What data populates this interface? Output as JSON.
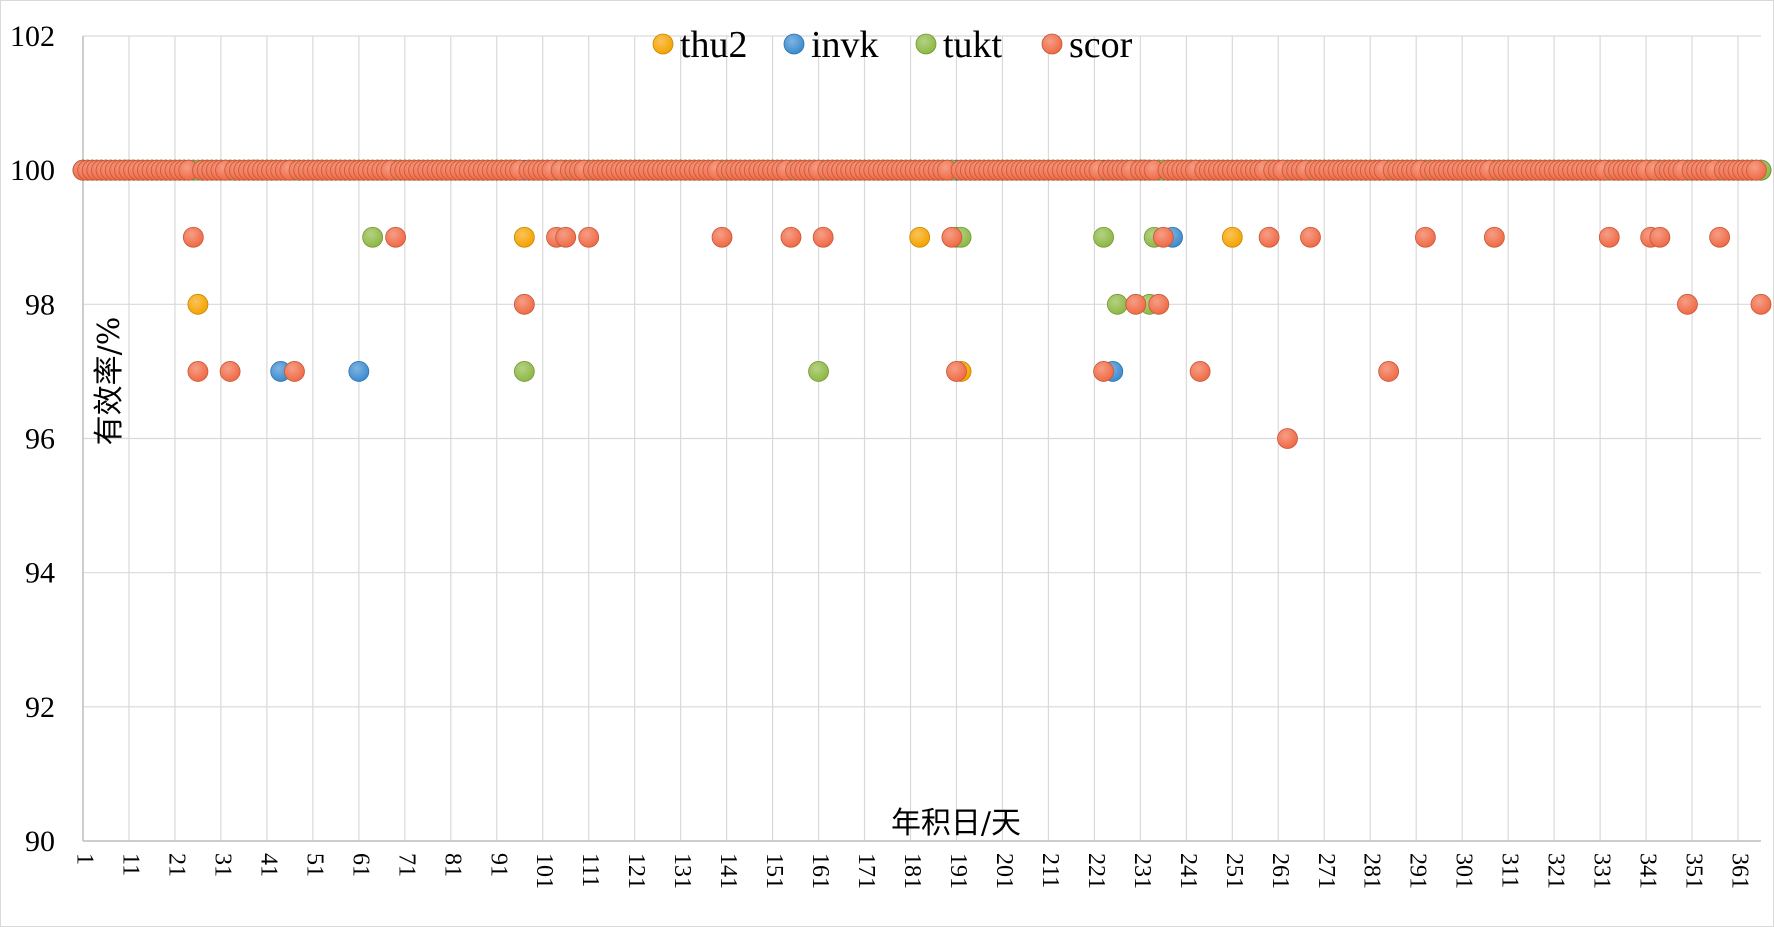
{
  "chart_data": {
    "type": "scatter",
    "title": "",
    "xlabel": "年积日/天",
    "ylabel": "有效率/%",
    "xlim": [
      1,
      366
    ],
    "ylim": [
      90,
      102
    ],
    "y_ticks": [
      90,
      92,
      94,
      96,
      98,
      100,
      102
    ],
    "x_tick_labels": [
      1,
      11,
      21,
      31,
      41,
      51,
      61,
      71,
      81,
      91,
      101,
      111,
      121,
      131,
      141,
      151,
      161,
      171,
      181,
      191,
      201,
      211,
      221,
      231,
      241,
      251,
      261,
      271,
      281,
      291,
      301,
      311,
      321,
      331,
      341,
      351,
      361
    ],
    "grid": true,
    "legend_position": "top-center",
    "baseline_value": 100,
    "series": [
      {
        "name": "thu2",
        "color": "#f5a300",
        "exceptions": [
          {
            "x": 26,
            "y": 98
          },
          {
            "x": 97,
            "y": 99
          },
          {
            "x": 183,
            "y": 99
          },
          {
            "x": 192,
            "y": 97
          },
          {
            "x": 251,
            "y": 99
          }
        ]
      },
      {
        "name": "invk",
        "color": "#3b8bd0",
        "exceptions": [
          {
            "x": 44,
            "y": 97
          },
          {
            "x": 61,
            "y": 97
          },
          {
            "x": 225,
            "y": 97
          },
          {
            "x": 238,
            "y": 99
          }
        ]
      },
      {
        "name": "tukt",
        "color": "#8db843",
        "exceptions": [
          {
            "x": 64,
            "y": 99
          },
          {
            "x": 97,
            "y": 97
          },
          {
            "x": 161,
            "y": 97
          },
          {
            "x": 191,
            "y": 99
          },
          {
            "x": 192,
            "y": 99
          },
          {
            "x": 223,
            "y": 99
          },
          {
            "x": 226,
            "y": 98
          },
          {
            "x": 233,
            "y": 98
          },
          {
            "x": 234,
            "y": 99
          }
        ]
      },
      {
        "name": "scor",
        "color": "#f06a45",
        "exceptions": [
          {
            "x": 25,
            "y": 99
          },
          {
            "x": 26,
            "y": 97
          },
          {
            "x": 33,
            "y": 97
          },
          {
            "x": 47,
            "y": 97
          },
          {
            "x": 69,
            "y": 99
          },
          {
            "x": 97,
            "y": 98
          },
          {
            "x": 104,
            "y": 99
          },
          {
            "x": 106,
            "y": 99
          },
          {
            "x": 111,
            "y": 99
          },
          {
            "x": 140,
            "y": 99
          },
          {
            "x": 155,
            "y": 99
          },
          {
            "x": 162,
            "y": 99
          },
          {
            "x": 190,
            "y": 99
          },
          {
            "x": 191,
            "y": 97
          },
          {
            "x": 223,
            "y": 97
          },
          {
            "x": 230,
            "y": 98
          },
          {
            "x": 235,
            "y": 98
          },
          {
            "x": 236,
            "y": 99
          },
          {
            "x": 244,
            "y": 97
          },
          {
            "x": 259,
            "y": 99
          },
          {
            "x": 263,
            "y": 96
          },
          {
            "x": 268,
            "y": 99
          },
          {
            "x": 285,
            "y": 97
          },
          {
            "x": 293,
            "y": 99
          },
          {
            "x": 308,
            "y": 99
          },
          {
            "x": 333,
            "y": 99
          },
          {
            "x": 342,
            "y": 99
          },
          {
            "x": 344,
            "y": 99
          },
          {
            "x": 350,
            "y": 98
          },
          {
            "x": 357,
            "y": 99
          },
          {
            "x": 366,
            "y": 98
          }
        ]
      }
    ]
  }
}
